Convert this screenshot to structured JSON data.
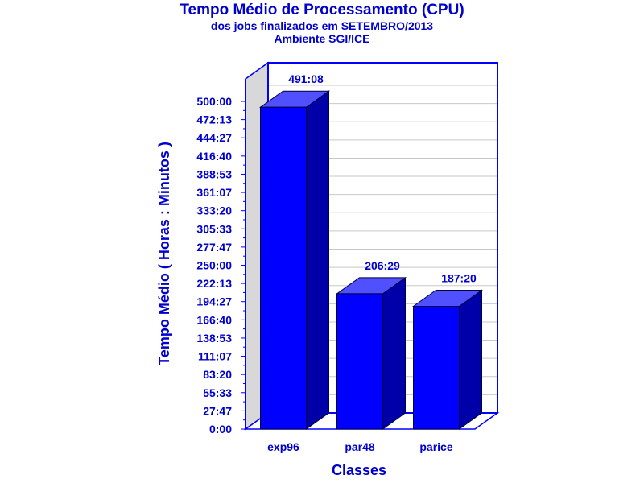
{
  "chart_data": {
    "type": "bar",
    "title": "Tempo Médio de Processamento (CPU)",
    "subtitle": "dos jobs finalizados em SETEMBRO/2013",
    "subtitle2": "Ambiente SGI/ICE",
    "xlabel": "Classes",
    "ylabel": "Tempo Médio ( Horas : Minutos )",
    "categories": [
      "exp96",
      "par48",
      "parice"
    ],
    "values": [
      491.133,
      206.483,
      187.333
    ],
    "value_labels": [
      "491:08",
      "206:29",
      "187:20"
    ],
    "ylim": [
      0,
      500
    ],
    "yticks": [
      0,
      27.778,
      55.556,
      83.333,
      111.111,
      138.889,
      166.667,
      194.444,
      222.222,
      250,
      277.778,
      305.556,
      333.333,
      361.111,
      388.889,
      416.667,
      444.444,
      472.222,
      500
    ],
    "ytick_labels": [
      "0:00",
      "27:47",
      "55:33",
      "83:20",
      "111:07",
      "138:53",
      "166:40",
      "194:27",
      "222:13",
      "250:00",
      "277:47",
      "305:33",
      "333:20",
      "361:07",
      "388:53",
      "416:40",
      "444:27",
      "472:13",
      "500:00"
    ],
    "grid": true,
    "colors": {
      "bar_front": "#0000ff",
      "bar_top": "#5050ff",
      "bar_side": "#0000a8",
      "text": "#0000cc",
      "wall": "#d8d8d8",
      "grid": "#c8c8c8",
      "frame": "#0000ff"
    }
  }
}
